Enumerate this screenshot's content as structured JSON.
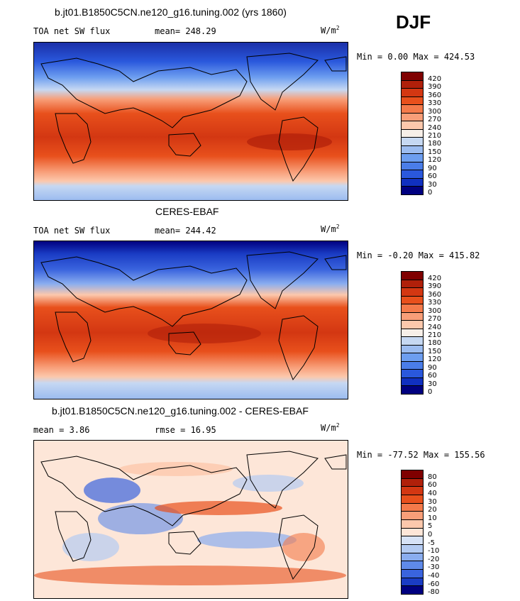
{
  "season": "DJF",
  "units_label": "W/m",
  "units_sup": "2",
  "panels": [
    {
      "title": "b.jt01.B1850C5CN.ne120_g16.tuning.002 (yrs 1860)",
      "variable": "TOA net SW flux",
      "stat": "mean= 248.29",
      "minmax": "Min =   0.00 Max = 424.53",
      "type": "full",
      "colorbar_labels": [
        "420",
        "390",
        "360",
        "330",
        "300",
        "270",
        "240",
        "210",
        "180",
        "150",
        "120",
        "90",
        "60",
        "30",
        "0"
      ]
    },
    {
      "title": "CERES-EBAF",
      "variable": "TOA net SW flux",
      "stat": "mean= 244.42",
      "minmax": "Min =  -0.20 Max = 415.82",
      "type": "full",
      "colorbar_labels": [
        "420",
        "390",
        "360",
        "330",
        "300",
        "270",
        "240",
        "210",
        "180",
        "150",
        "120",
        "90",
        "60",
        "30",
        "0"
      ]
    },
    {
      "title": "b.jt01.B1850C5CN.ne120_g16.tuning.002 - CERES-EBAF",
      "variable": "mean =   3.86",
      "stat": "rmse =   16.95",
      "minmax": "Min = -77.52 Max = 155.56",
      "type": "diff",
      "colorbar_labels": [
        "80",
        "60",
        "40",
        "30",
        "20",
        "10",
        "5",
        "0",
        "-5",
        "-10",
        "-20",
        "-30",
        "-40",
        "-60",
        "-80"
      ]
    }
  ],
  "colors": {
    "full_scale": [
      "#7f0000",
      "#b0200a",
      "#d33712",
      "#e8501c",
      "#f47a4a",
      "#f89e78",
      "#fcc8ac",
      "#f7efe8",
      "#c6d8f2",
      "#9cbcf0",
      "#6d9ef0",
      "#4a7de8",
      "#2a58dc",
      "#1030c0",
      "#000080"
    ],
    "diff_scale": [
      "#7f0000",
      "#b0200a",
      "#d33712",
      "#e8501c",
      "#f47a4a",
      "#f89e78",
      "#fcc8ac",
      "#fde6d8",
      "#d6e2f6",
      "#b4cbf2",
      "#8aadef",
      "#5f8ae9",
      "#3a64de",
      "#1a3cc4",
      "#000080"
    ]
  }
}
